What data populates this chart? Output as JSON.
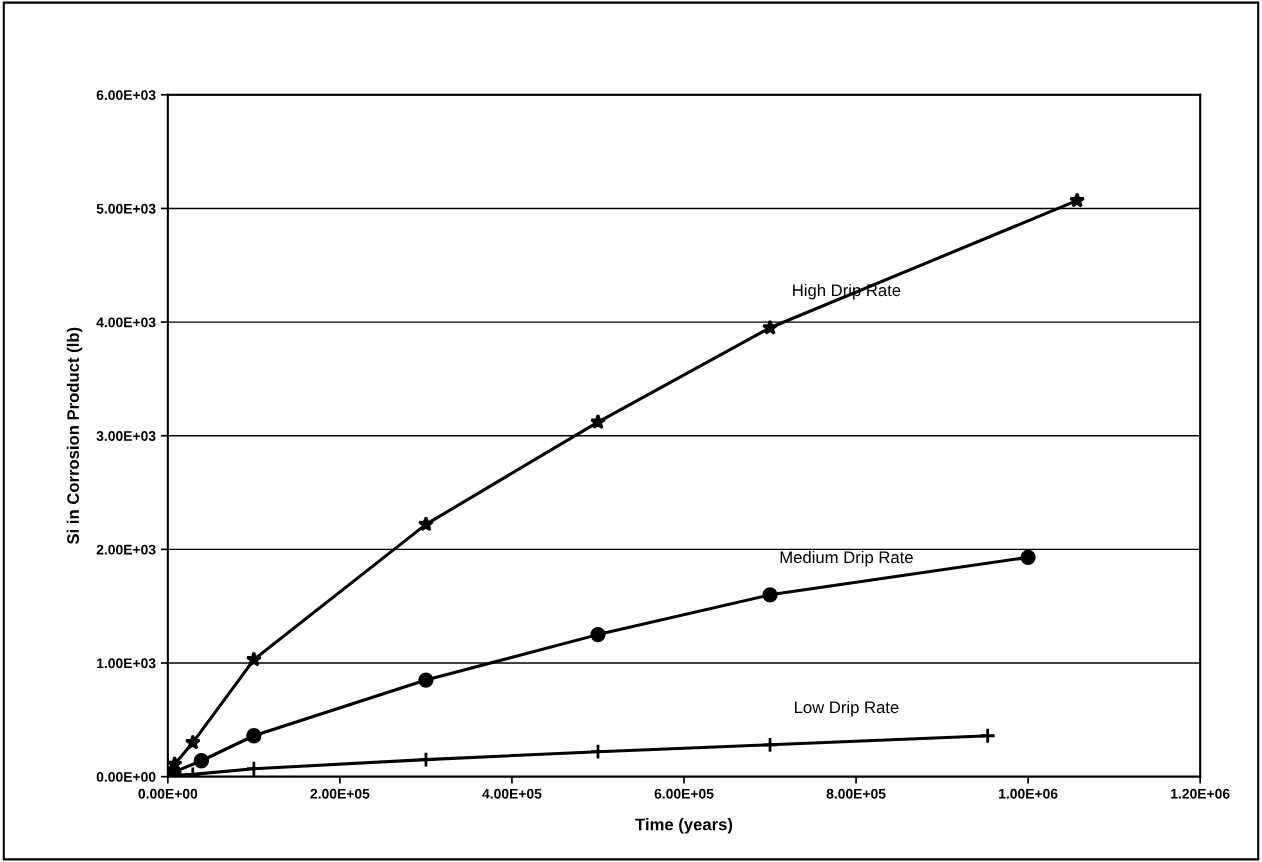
{
  "chart_data": {
    "type": "line",
    "xlabel": "Time (years)",
    "ylabel": "Si in Corrosion Product (lb)",
    "series": [
      {
        "name": "High Drip Rate",
        "color": "#000000",
        "marker": "star",
        "x": [
          8000,
          29000,
          100000,
          300000,
          500000,
          700000,
          1057000
        ],
        "values": [
          110,
          300,
          1030,
          2220,
          3120,
          3950,
          5070
        ]
      },
      {
        "name": "Medium Drip Rate",
        "color": "#000000",
        "marker": "circle",
        "x": [
          7000,
          39000,
          100000,
          300000,
          500000,
          700000,
          1000000
        ],
        "values": [
          40,
          140,
          360,
          850,
          1250,
          1600,
          1930
        ]
      },
      {
        "name": "Low Drip Rate",
        "color": "#000000",
        "marker": "cross",
        "x": [
          5000,
          29000,
          100000,
          300000,
          500000,
          700000,
          953000
        ],
        "values": [
          10,
          20,
          70,
          150,
          220,
          280,
          360
        ]
      }
    ],
    "xlim": [
      0,
      1200000
    ],
    "ylim": [
      0,
      6000
    ],
    "xticks": [
      {
        "value": 0,
        "label": "0.00E+00"
      },
      {
        "value": 200000,
        "label": "2.00E+05"
      },
      {
        "value": 400000,
        "label": "4.00E+05"
      },
      {
        "value": 600000,
        "label": "6.00E+05"
      },
      {
        "value": 800000,
        "label": "8.00E+05"
      },
      {
        "value": 1000000,
        "label": "1.00E+06"
      },
      {
        "value": 1200000,
        "label": "1.20E+06"
      }
    ],
    "yticks": [
      {
        "value": 0,
        "label": "0.00E+00"
      },
      {
        "value": 1000,
        "label": "1.00E+03"
      },
      {
        "value": 2000,
        "label": "2.00E+03"
      },
      {
        "value": 3000,
        "label": "3.00E+03"
      },
      {
        "value": 4000,
        "label": "4.00E+03"
      },
      {
        "value": 5000,
        "label": "5.00E+03"
      },
      {
        "value": 6000,
        "label": "6.00E+03"
      }
    ],
    "grid": "y",
    "legend": false
  }
}
